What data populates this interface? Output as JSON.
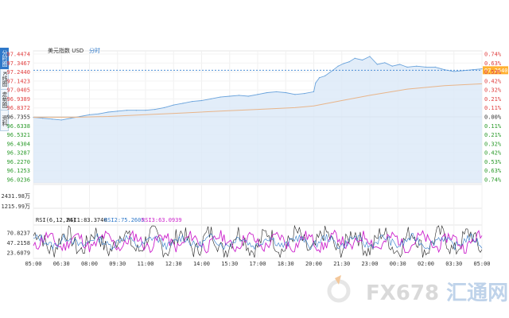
{
  "side_tabs": [
    "分时图",
    "K线图",
    "走势图",
    "资料"
  ],
  "chart_data": [
    {
      "type": "line",
      "title": "美元指数 USD",
      "subtitle": "分时",
      "x_ticks": [
        "05:00",
        "06:30",
        "08:00",
        "09:30",
        "11:00",
        "12:30",
        "14:00",
        "15:30",
        "17:00",
        "18:30",
        "20:00",
        "21:30",
        "23:00",
        "00:30",
        "02:00",
        "03:30",
        "05:00"
      ],
      "y_ticks_price": [
        "97.4474",
        "97.3467",
        "97.2440",
        "97.1423",
        "97.0405",
        "96.9389",
        "96.8372",
        "96.7355",
        "96.6338",
        "96.5321",
        "96.4304",
        "96.3287",
        "96.2270",
        "96.1253",
        "96.0236"
      ],
      "y_ticks_pct": [
        "0.74%",
        "0.63%",
        "0.53%",
        "0.42%",
        "0.32%",
        "0.21%",
        "0.11%",
        "0.00%",
        "0.11%",
        "0.21%",
        "0.32%",
        "0.42%",
        "0.53%",
        "0.63%",
        "0.74%"
      ],
      "last_value_label": "97.2640",
      "prev_close": 96.7355,
      "ylim": [
        96.0236,
        97.4474
      ],
      "series": [
        {
          "role": "price",
          "x_hours": [
            0,
            0.5,
            1,
            1.5,
            2,
            2.5,
            3,
            3.5,
            4,
            4.5,
            5,
            5.5,
            6,
            6.5,
            7,
            7.5,
            8,
            8.5,
            9,
            9.5,
            10,
            10.5,
            11,
            11.5,
            12,
            12.5,
            13,
            13.5,
            14,
            14.5,
            15,
            15.1,
            15.3,
            15.6,
            16,
            16.3,
            16.6,
            16.9,
            17.2,
            17.6,
            18,
            18.4,
            18.8,
            19.2,
            19.6,
            20,
            20.5,
            21,
            21.5,
            22,
            22.5,
            23,
            23.5,
            24
          ],
          "values": [
            96.73,
            96.72,
            96.71,
            96.7,
            96.72,
            96.74,
            96.76,
            96.77,
            96.79,
            96.8,
            96.81,
            96.81,
            96.81,
            96.82,
            96.84,
            96.87,
            96.89,
            96.91,
            96.92,
            96.94,
            96.96,
            96.97,
            96.98,
            96.97,
            96.99,
            97.01,
            97.02,
            97.01,
            96.99,
            97.0,
            97.02,
            97.12,
            97.18,
            97.2,
            97.26,
            97.31,
            97.34,
            97.36,
            97.4,
            97.38,
            97.42,
            97.33,
            97.35,
            97.31,
            97.33,
            97.3,
            97.31,
            97.3,
            97.3,
            97.27,
            97.25,
            97.26,
            97.27,
            97.28
          ]
        },
        {
          "role": "average",
          "x_hours": [
            0,
            2,
            4,
            6,
            8,
            10,
            12,
            14,
            15,
            16,
            18,
            20,
            22,
            24
          ],
          "values": [
            96.73,
            96.73,
            96.74,
            96.76,
            96.78,
            96.8,
            96.82,
            96.84,
            96.86,
            96.9,
            96.98,
            97.05,
            97.09,
            97.11
          ]
        }
      ],
      "volume_ticks": [
        "2431.98万",
        "1215.99万"
      ]
    },
    {
      "type": "line",
      "title": "RSI(6,12,24)",
      "legend": [
        {
          "text": "RSI1:83.3740",
          "color": "#222222"
        },
        {
          "text": "RSI2:75.2605",
          "color": "#2e78c9"
        },
        {
          "text": "RSI3:63.0939",
          "color": "#cc22cc"
        }
      ],
      "y_ticks": [
        "70.8237",
        "47.2158",
        "23.6079"
      ],
      "ylim": [
        10,
        90
      ]
    }
  ],
  "watermark": {
    "brand": "FX678",
    "tail": "汇通网"
  },
  "colors": {
    "price_line": "#6aa3dc",
    "fill": "#dbe9f8",
    "average_line": "#e8b58a",
    "up": "#e04040",
    "down": "#2a9a2a",
    "grid": "#e6e6e6",
    "dash": "#4d8fd6",
    "tag_bg": "#ffb030"
  }
}
